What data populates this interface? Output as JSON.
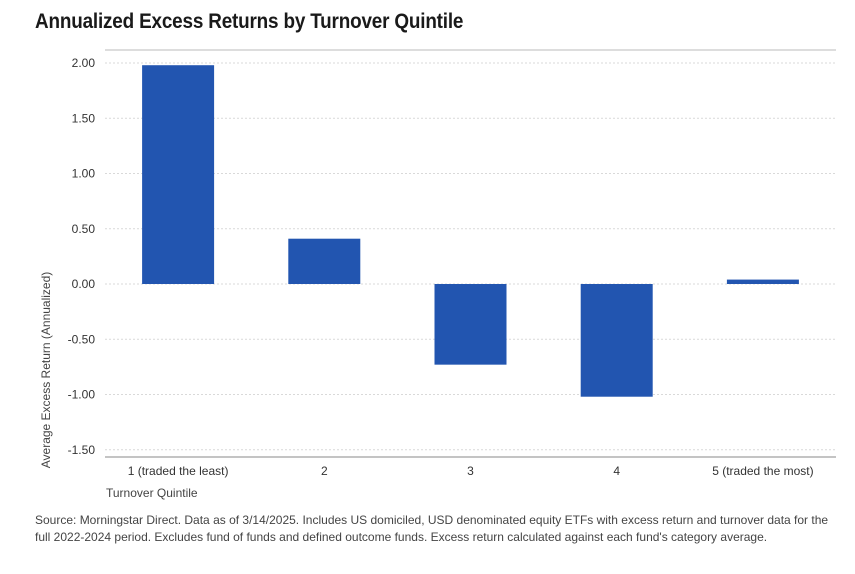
{
  "title": "Annualized Excess Returns by Turnover Quintile",
  "footnote": "Source: Morningstar Direct. Data as of 3/14/2025. Includes US domiciled, USD denominated equity ETFs with excess return and turnover data for the full 2022-2024 period. Excludes fund of funds and defined outcome funds. Excess return calculated against each fund's category average.",
  "colors": {
    "bar": "#2255b0",
    "grid": "#d9d9d9",
    "axis": "#888888"
  },
  "chart_data": {
    "type": "bar",
    "title": "Annualized Excess Returns by Turnover Quintile",
    "xlabel": "Turnover Quintile",
    "ylabel": "Average Excess Return (Annualized)",
    "categories": [
      "1 (traded the least)",
      "2",
      "3",
      "4",
      "5 (traded the most)"
    ],
    "values": [
      1.98,
      0.41,
      -0.73,
      -1.02,
      0.04
    ],
    "ylim": [
      -1.5,
      2.0
    ],
    "yticks": [
      2.0,
      1.5,
      1.0,
      0.5,
      0.0,
      -0.5,
      -1.0,
      -1.5
    ],
    "ytick_labels": [
      "2.00",
      "1.50",
      "1.00",
      "0.50",
      "0.00",
      "-0.50",
      "-1.00",
      "-1.50"
    ],
    "grid": true,
    "legend": "none"
  }
}
